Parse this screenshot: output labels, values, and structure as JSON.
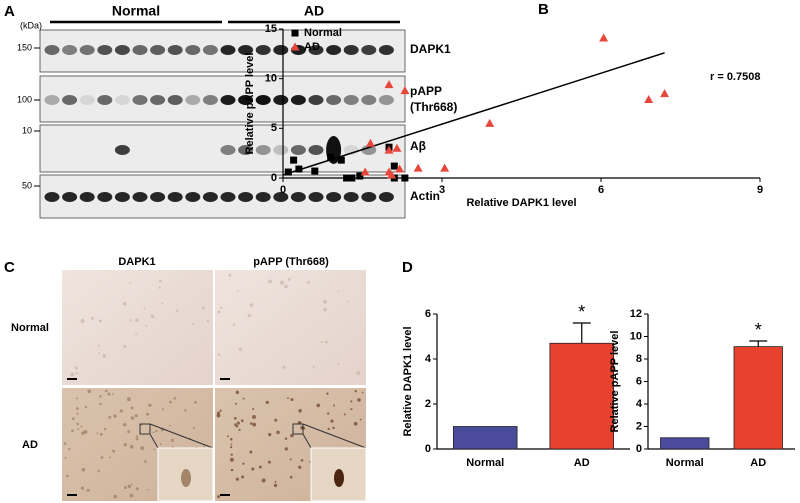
{
  "panel_labels": [
    "A",
    "B",
    "C",
    "D"
  ],
  "blot": {
    "groups": [
      "Normal",
      "AD"
    ],
    "unit": "(kDa)",
    "markers": [
      150,
      100,
      10,
      50
    ],
    "bands": [
      [
        "DAPK1"
      ],
      [
        "pAPP",
        "(Thr668)"
      ],
      [
        "Aβ"
      ],
      [
        "Actin"
      ]
    ]
  },
  "histology": {
    "columns": [
      "DAPK1",
      "pAPP (Thr668)"
    ],
    "rows": [
      "Normal",
      "AD"
    ]
  },
  "chart_data": [
    {
      "type": "scatter",
      "x_label": "Relative DAPK1 level",
      "y_label": "Relative pAPP level",
      "annotation": "r = 0.7508",
      "legend": "upper-left",
      "xlim": [
        0,
        9
      ],
      "xticks": [
        0,
        3,
        6,
        9
      ],
      "ylim": [
        0,
        15
      ],
      "yticks": [
        0,
        5,
        10,
        15
      ],
      "series": [
        {
          "name": "Normal",
          "color": "#000000",
          "marker": "square",
          "x": [
            0.2,
            0.1,
            0.3,
            0.6,
            0.9,
            1.1,
            1.2,
            1.3,
            1.45,
            2.0,
            2.1,
            2.1,
            2.3
          ],
          "values": [
            1.8,
            0.6,
            0.9,
            0.7,
            2.1,
            1.8,
            0,
            0,
            0.2,
            3.1,
            1.2,
            0,
            0
          ]
        },
        {
          "name": "AD",
          "color": "#e8473c",
          "marker": "triangle",
          "x": [
            6.05,
            6.9,
            7.2,
            3.9,
            2.0,
            2.3,
            1.65,
            2.0,
            2.15,
            2.0,
            2.05,
            2.2,
            2.55,
            3.05,
            1.55
          ],
          "values": [
            14.1,
            7.9,
            8.5,
            5.5,
            9.4,
            8.8,
            3.5,
            2.8,
            3.0,
            0.6,
            0.3,
            0.9,
            1.0,
            1.0,
            0.6
          ]
        }
      ],
      "trend_line": {
        "color": "#000000",
        "x": [
          0,
          7.2
        ],
        "y": [
          0.3,
          12.6
        ]
      }
    },
    {
      "type": "bar",
      "y_label": "Relative DAPK1 level",
      "categories": [
        "Normal",
        "AD"
      ],
      "values": [
        1,
        4.7
      ],
      "errors": [
        0,
        0.9
      ],
      "colors": [
        "#4b4b9b",
        "#e8412e"
      ],
      "value_annotations": [
        null,
        "*"
      ],
      "ylim": [
        0,
        6
      ],
      "yticks": [
        0,
        2,
        4,
        6
      ]
    },
    {
      "type": "bar",
      "y_label": "Relative pAPP level",
      "categories": [
        "Normal",
        "AD"
      ],
      "values": [
        1,
        9.1
      ],
      "errors": [
        0,
        0.5
      ],
      "colors": [
        "#4b4b9b",
        "#e8412e"
      ],
      "value_annotations": [
        null,
        "*"
      ],
      "ylim": [
        0,
        12
      ],
      "yticks": [
        0,
        2,
        4,
        6,
        8,
        10,
        12
      ]
    }
  ]
}
